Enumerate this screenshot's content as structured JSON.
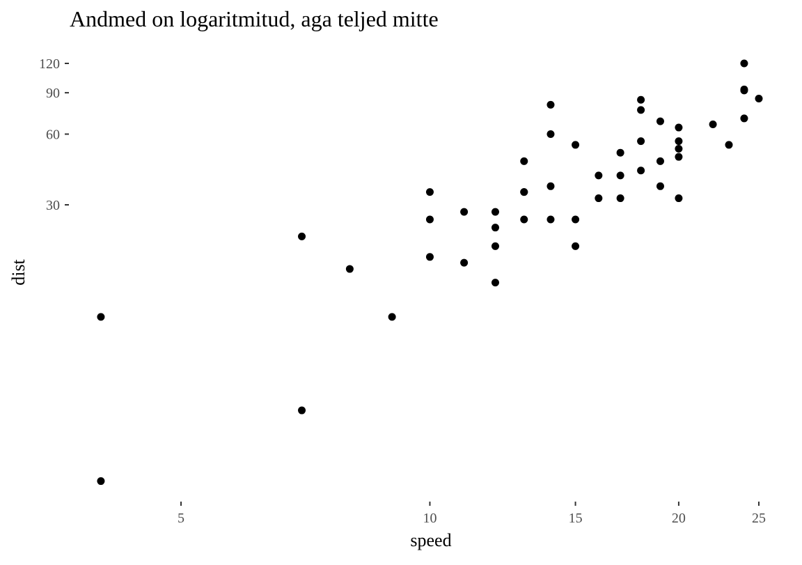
{
  "chart_data": {
    "type": "scatter",
    "title": "Andmed on logaritmitud, aga teljed mitte",
    "xlabel": "speed",
    "ylabel": "dist",
    "x_scale": "log",
    "y_scale": "log",
    "xlim": [
      4,
      25
    ],
    "ylim": [
      2,
      120
    ],
    "x_ticks": [
      5,
      10,
      15,
      20,
      25
    ],
    "y_ticks": [
      30,
      60,
      90,
      120
    ],
    "grid": false,
    "legend": "none",
    "point_color": "#000000",
    "points": [
      {
        "x": 4,
        "y": 2
      },
      {
        "x": 4,
        "y": 10
      },
      {
        "x": 7,
        "y": 4
      },
      {
        "x": 7,
        "y": 22
      },
      {
        "x": 8,
        "y": 16
      },
      {
        "x": 9,
        "y": 10
      },
      {
        "x": 10,
        "y": 18
      },
      {
        "x": 10,
        "y": 26
      },
      {
        "x": 10,
        "y": 34
      },
      {
        "x": 11,
        "y": 17
      },
      {
        "x": 11,
        "y": 28
      },
      {
        "x": 12,
        "y": 14
      },
      {
        "x": 12,
        "y": 20
      },
      {
        "x": 12,
        "y": 24
      },
      {
        "x": 12,
        "y": 28
      },
      {
        "x": 13,
        "y": 26
      },
      {
        "x": 13,
        "y": 34
      },
      {
        "x": 13,
        "y": 34
      },
      {
        "x": 13,
        "y": 46
      },
      {
        "x": 14,
        "y": 26
      },
      {
        "x": 14,
        "y": 36
      },
      {
        "x": 14,
        "y": 60
      },
      {
        "x": 14,
        "y": 80
      },
      {
        "x": 15,
        "y": 20
      },
      {
        "x": 15,
        "y": 26
      },
      {
        "x": 15,
        "y": 54
      },
      {
        "x": 16,
        "y": 32
      },
      {
        "x": 16,
        "y": 40
      },
      {
        "x": 17,
        "y": 32
      },
      {
        "x": 17,
        "y": 40
      },
      {
        "x": 17,
        "y": 50
      },
      {
        "x": 18,
        "y": 42
      },
      {
        "x": 18,
        "y": 56
      },
      {
        "x": 18,
        "y": 76
      },
      {
        "x": 18,
        "y": 84
      },
      {
        "x": 19,
        "y": 36
      },
      {
        "x": 19,
        "y": 46
      },
      {
        "x": 19,
        "y": 68
      },
      {
        "x": 20,
        "y": 32
      },
      {
        "x": 20,
        "y": 48
      },
      {
        "x": 20,
        "y": 52
      },
      {
        "x": 20,
        "y": 56
      },
      {
        "x": 20,
        "y": 64
      },
      {
        "x": 22,
        "y": 66
      },
      {
        "x": 23,
        "y": 54
      },
      {
        "x": 24,
        "y": 70
      },
      {
        "x": 24,
        "y": 92
      },
      {
        "x": 24,
        "y": 93
      },
      {
        "x": 24,
        "y": 120
      },
      {
        "x": 25,
        "y": 85
      }
    ]
  }
}
